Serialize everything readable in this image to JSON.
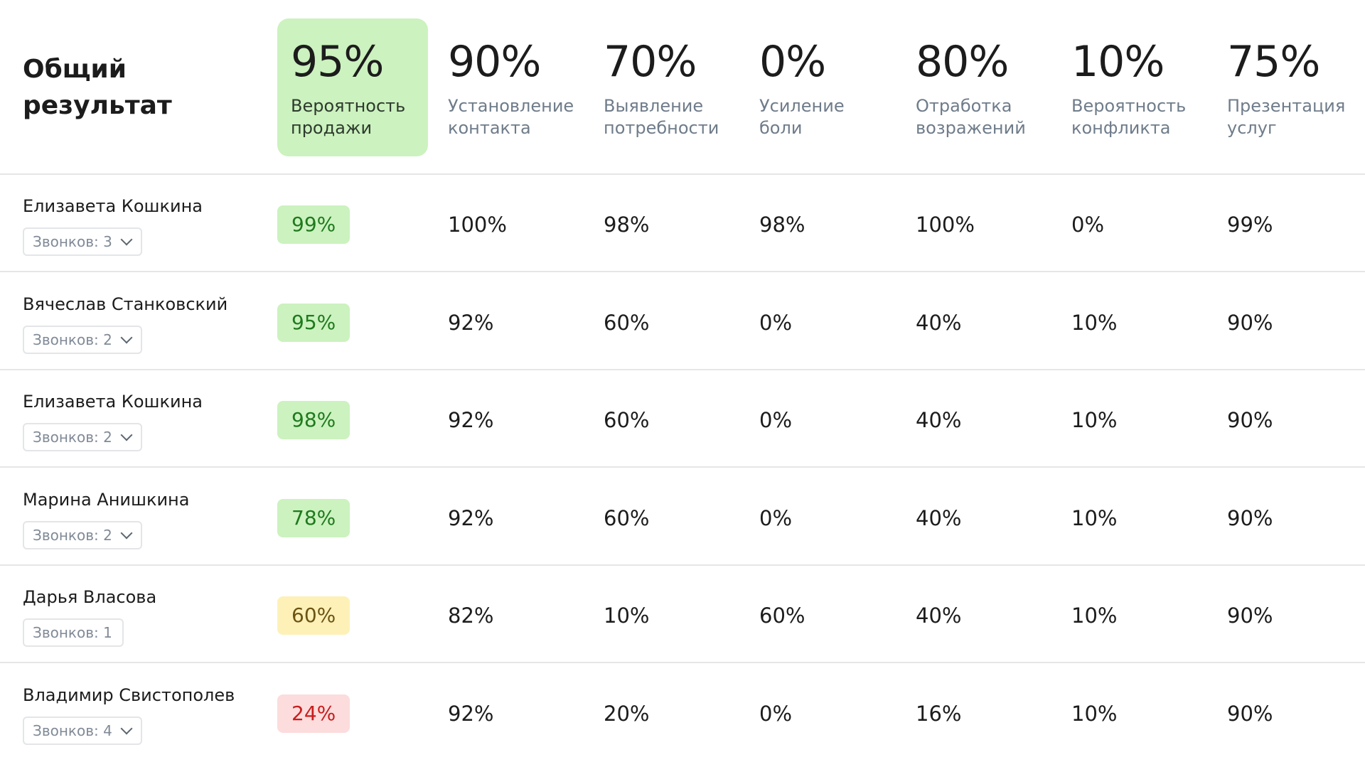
{
  "header": {
    "title_line1": "Общий",
    "title_line2": "результат",
    "columns": [
      {
        "value": "95%",
        "label_line1": "Вероятность",
        "label_line2": "продажи"
      },
      {
        "value": "90%",
        "label_line1": "Установление",
        "label_line2": "контакта"
      },
      {
        "value": "70%",
        "label_line1": "Выявление",
        "label_line2": "потребности"
      },
      {
        "value": "0%",
        "label_line1": "Усиление",
        "label_line2": "боли"
      },
      {
        "value": "80%",
        "label_line1": "Отработка",
        "label_line2": "возражений"
      },
      {
        "value": "10%",
        "label_line1": "Вероятность",
        "label_line2": "конфликта"
      },
      {
        "value": "75%",
        "label_line1": "Презентация",
        "label_line2": "услуг"
      }
    ]
  },
  "status_colors": {
    "green": "#ccf2bf",
    "yellow": "#fdf1b8",
    "red": "#fcdcdc"
  },
  "rows": [
    {
      "name": "Елизавета Кошкина",
      "calls": "Звонков: 3",
      "has_dropdown": true,
      "sale": "99%",
      "sale_status": "green",
      "values": [
        "100%",
        "98%",
        "98%",
        "100%",
        "0%",
        "99%"
      ]
    },
    {
      "name": "Вячеслав Станковский",
      "calls": "Звонков: 2",
      "has_dropdown": true,
      "sale": "95%",
      "sale_status": "green",
      "values": [
        "92%",
        "60%",
        "0%",
        "40%",
        "10%",
        "90%"
      ]
    },
    {
      "name": "Елизавета Кошкина",
      "calls": "Звонков: 2",
      "has_dropdown": true,
      "sale": "98%",
      "sale_status": "green",
      "values": [
        "92%",
        "60%",
        "0%",
        "40%",
        "10%",
        "90%"
      ]
    },
    {
      "name": "Марина Анишкина",
      "calls": "Звонков: 2",
      "has_dropdown": true,
      "sale": "78%",
      "sale_status": "green",
      "values": [
        "92%",
        "60%",
        "0%",
        "40%",
        "10%",
        "90%"
      ]
    },
    {
      "name": "Дарья Власова",
      "calls": "Звонков: 1",
      "has_dropdown": false,
      "sale": "60%",
      "sale_status": "yellow",
      "values": [
        "82%",
        "10%",
        "60%",
        "40%",
        "10%",
        "90%"
      ]
    },
    {
      "name": "Владимир Свистополев",
      "calls": "Звонков: 4",
      "has_dropdown": true,
      "sale": "24%",
      "sale_status": "red",
      "values": [
        "92%",
        "20%",
        "0%",
        "16%",
        "10%",
        "90%"
      ]
    }
  ]
}
